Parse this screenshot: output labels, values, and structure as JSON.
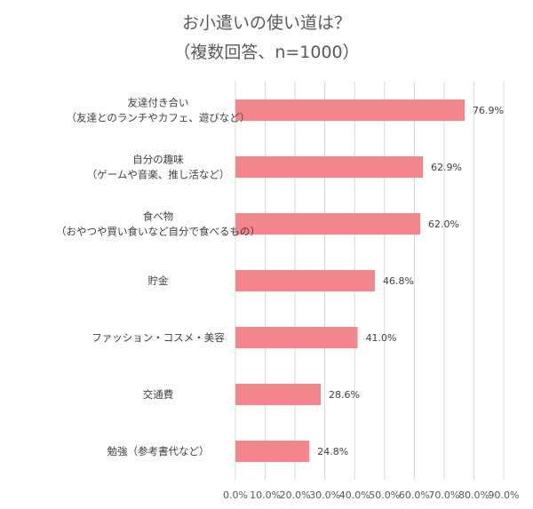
{
  "chart_data": {
    "type": "bar",
    "orientation": "horizontal",
    "title": "お小遣いの使い道は？",
    "subtitle": "（複数回答、n=1000）",
    "categories": [
      [
        "友達付き合い",
        "（友達とのランチやカフェ、遊びなど）"
      ],
      [
        "自分の趣味",
        "（ゲームや音楽、推し活など）"
      ],
      [
        "食べ物",
        "（おやつや買い食いなど自分で食べるもの）"
      ],
      [
        "貯金"
      ],
      [
        "ファッション・コスメ・美容"
      ],
      [
        "交通費"
      ],
      [
        "勉強（参考書代など）"
      ]
    ],
    "values": [
      76.9,
      62.9,
      62.0,
      46.8,
      41.0,
      28.6,
      24.8
    ],
    "value_labels": [
      "76.9%",
      "62.9%",
      "62.0%",
      "46.8%",
      "41.0%",
      "28.6%",
      "24.8%"
    ],
    "xlim": [
      0,
      90
    ],
    "xticks": [
      "0.0%",
      "10.0%",
      "20.0%",
      "30.0%",
      "40.0%",
      "50.0%",
      "60.0%",
      "70.0%",
      "80.0%",
      "90.0%"
    ],
    "grid": true,
    "legend": "none",
    "bar_color": "#F4878C",
    "grid_color": "#D9D9D9"
  }
}
